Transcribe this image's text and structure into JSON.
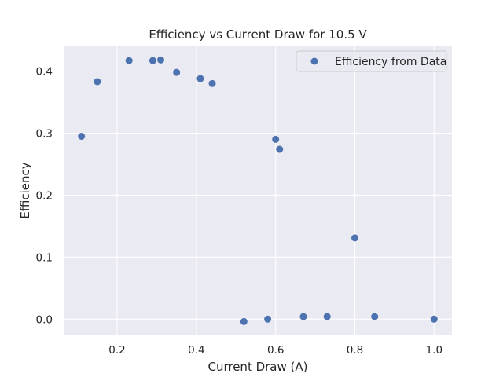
{
  "chart_data": {
    "type": "scatter",
    "title": "Efficiency vs Current Draw for 10.5 V",
    "xlabel": "Current Draw (A)",
    "ylabel": "Efficiency",
    "xlim": [
      0.065,
      1.045
    ],
    "ylim": [
      -0.025,
      0.44
    ],
    "xticks": [
      0.2,
      0.4,
      0.6,
      0.8,
      1.0
    ],
    "xtick_labels": [
      "0.2",
      "0.4",
      "0.6",
      "0.8",
      "1.0"
    ],
    "yticks": [
      0.0,
      0.1,
      0.2,
      0.3,
      0.4
    ],
    "ytick_labels": [
      "0.0",
      "0.1",
      "0.2",
      "0.3",
      "0.4"
    ],
    "grid": true,
    "legend_position": "top-right",
    "series": [
      {
        "name": "Efficiency from Data",
        "color": "#4c72b0",
        "x": [
          0.11,
          0.15,
          0.23,
          0.29,
          0.31,
          0.35,
          0.41,
          0.44,
          0.52,
          0.58,
          0.6,
          0.61,
          0.67,
          0.73,
          0.8,
          0.85,
          1.0
        ],
        "y": [
          0.295,
          0.383,
          0.417,
          0.417,
          0.418,
          0.398,
          0.388,
          0.38,
          -0.004,
          0.0,
          0.29,
          0.274,
          0.004,
          0.004,
          0.131,
          0.004,
          0.0
        ]
      }
    ]
  },
  "colors": {
    "plot_background": "#eaeaf2",
    "grid": "#ffffff",
    "marker": "#4c72b0"
  }
}
